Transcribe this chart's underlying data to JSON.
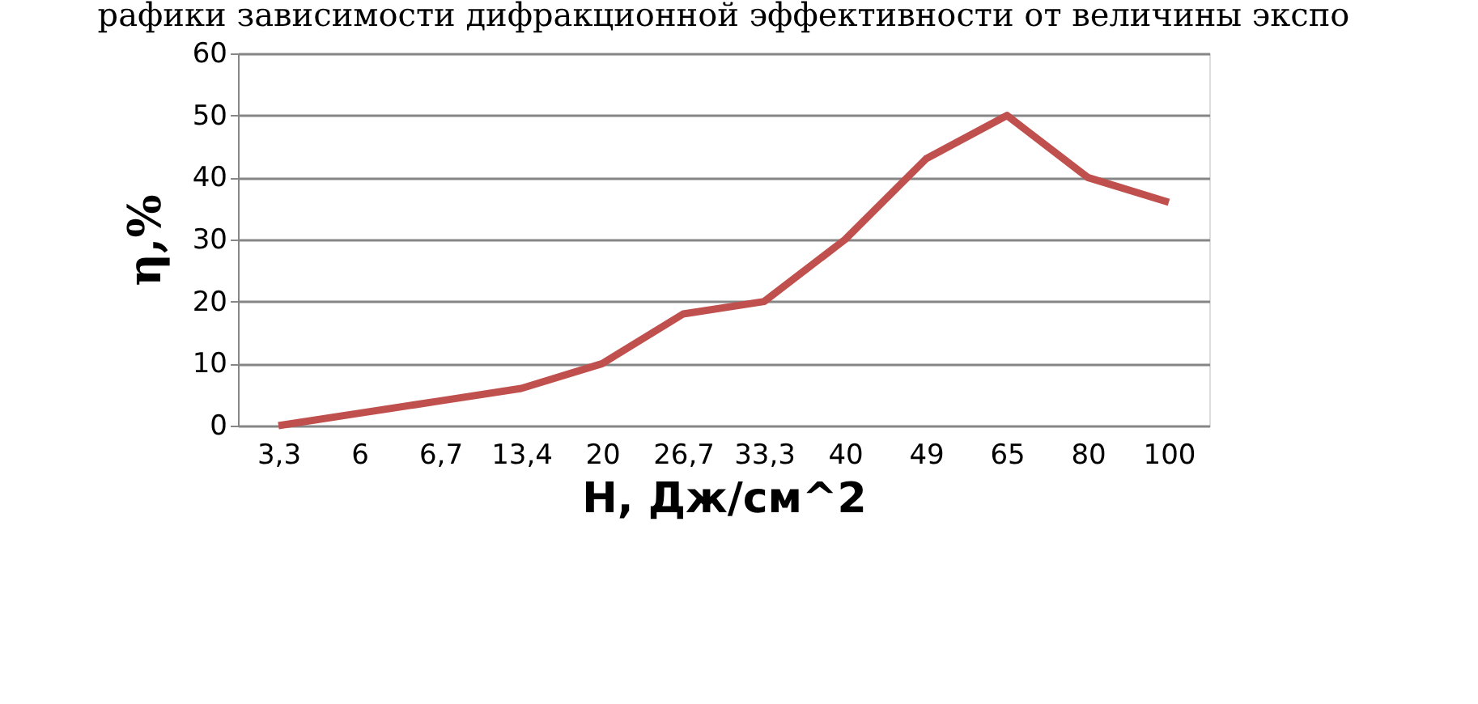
{
  "chart_data": {
    "type": "line",
    "title": "рафики зависимости дифракционной эффективности от величины экспо",
    "xlabel": "H, Дж/см^2",
    "ylabel": "η,%",
    "categories": [
      "3,3",
      "6",
      "6,7",
      "13,4",
      "20",
      "26,7",
      "33,3",
      "40",
      "49",
      "65",
      "80",
      "100"
    ],
    "series": [
      {
        "color": "#c0504d",
        "values": [
          0,
          2,
          4,
          6,
          10,
          18,
          20,
          30,
          43,
          50,
          40,
          36
        ]
      }
    ],
    "ylim": [
      0,
      60
    ],
    "yticks": [
      0,
      10,
      20,
      30,
      40,
      50,
      60
    ],
    "grid": "y",
    "legend": false,
    "marker": "none",
    "line_style": "solid"
  }
}
